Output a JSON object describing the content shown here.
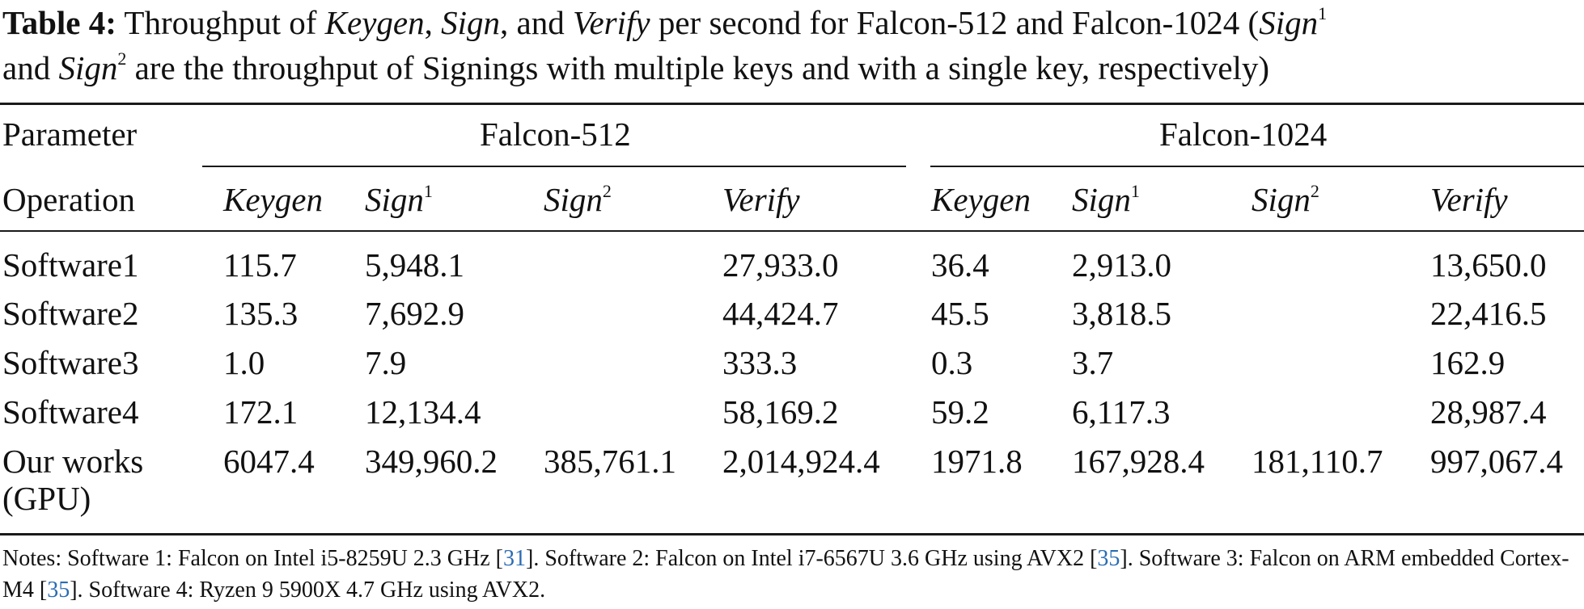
{
  "caption": {
    "label": "Table 4:",
    "p1": "Throughput of",
    "keygen": "Keygen",
    "comma1": ",",
    "sign": "Sign",
    "p2": ", and",
    "verify": "Verify",
    "p3": "per second for Falcon-512 and Falcon-1024 (",
    "sign_a": "Sign",
    "sup1": "1",
    "line2_a": "and",
    "sign_b": "Sign",
    "sup2": "2",
    "line2_b": "are the throughput of Signings with multiple keys and with a single key, respectively)"
  },
  "table": {
    "param_label": "Parameter",
    "group1": "Falcon-512",
    "group2": "Falcon-1024",
    "op_label": "Operation",
    "headers": [
      {
        "name": "Keygen",
        "sup": ""
      },
      {
        "name": "Sign",
        "sup": "1"
      },
      {
        "name": "Sign",
        "sup": "2"
      },
      {
        "name": "Verify",
        "sup": ""
      },
      {
        "name": "Keygen",
        "sup": ""
      },
      {
        "name": "Sign",
        "sup": "1"
      },
      {
        "name": "Sign",
        "sup": "2"
      },
      {
        "name": "Verify",
        "sup": ""
      }
    ],
    "rows": [
      {
        "label": "Software1",
        "values": [
          "115.7",
          "5,948.1",
          "",
          "27,933.0",
          "36.4",
          "2,913.0",
          "",
          "13,650.0"
        ]
      },
      {
        "label": "Software2",
        "values": [
          "135.3",
          "7,692.9",
          "",
          "44,424.7",
          "45.5",
          "3,818.5",
          "",
          "22,416.5"
        ]
      },
      {
        "label": "Software3",
        "values": [
          "1.0",
          "7.9",
          "",
          "333.3",
          "0.3",
          "3.7",
          "",
          "162.9"
        ]
      },
      {
        "label": "Software4",
        "values": [
          "172.1",
          "12,134.4",
          "",
          "58,169.2",
          "59.2",
          "6,117.3",
          "",
          "28,987.4"
        ]
      },
      {
        "label": "Our works",
        "label2": "(GPU)",
        "values": [
          "6047.4",
          "349,960.2",
          "385,761.1",
          "2,014,924.4",
          "1971.8",
          "167,928.4",
          "181,110.7",
          "997,067.4"
        ]
      }
    ]
  },
  "notes": {
    "t1": "Notes: Software 1: Falcon on Intel i5-8259U 2.3 GHz [",
    "r1": "31",
    "t2": "]. Software 2: Falcon on Intel i7-6567U 3.6 GHz using AVX2 [",
    "r2": "35",
    "t3": "]. Software 3: Falcon on ARM embedded Cortex-M4 [",
    "r3": "35",
    "t4": "]. Software 4: Ryzen 9 5900X 4.7 GHz using AVX2."
  }
}
